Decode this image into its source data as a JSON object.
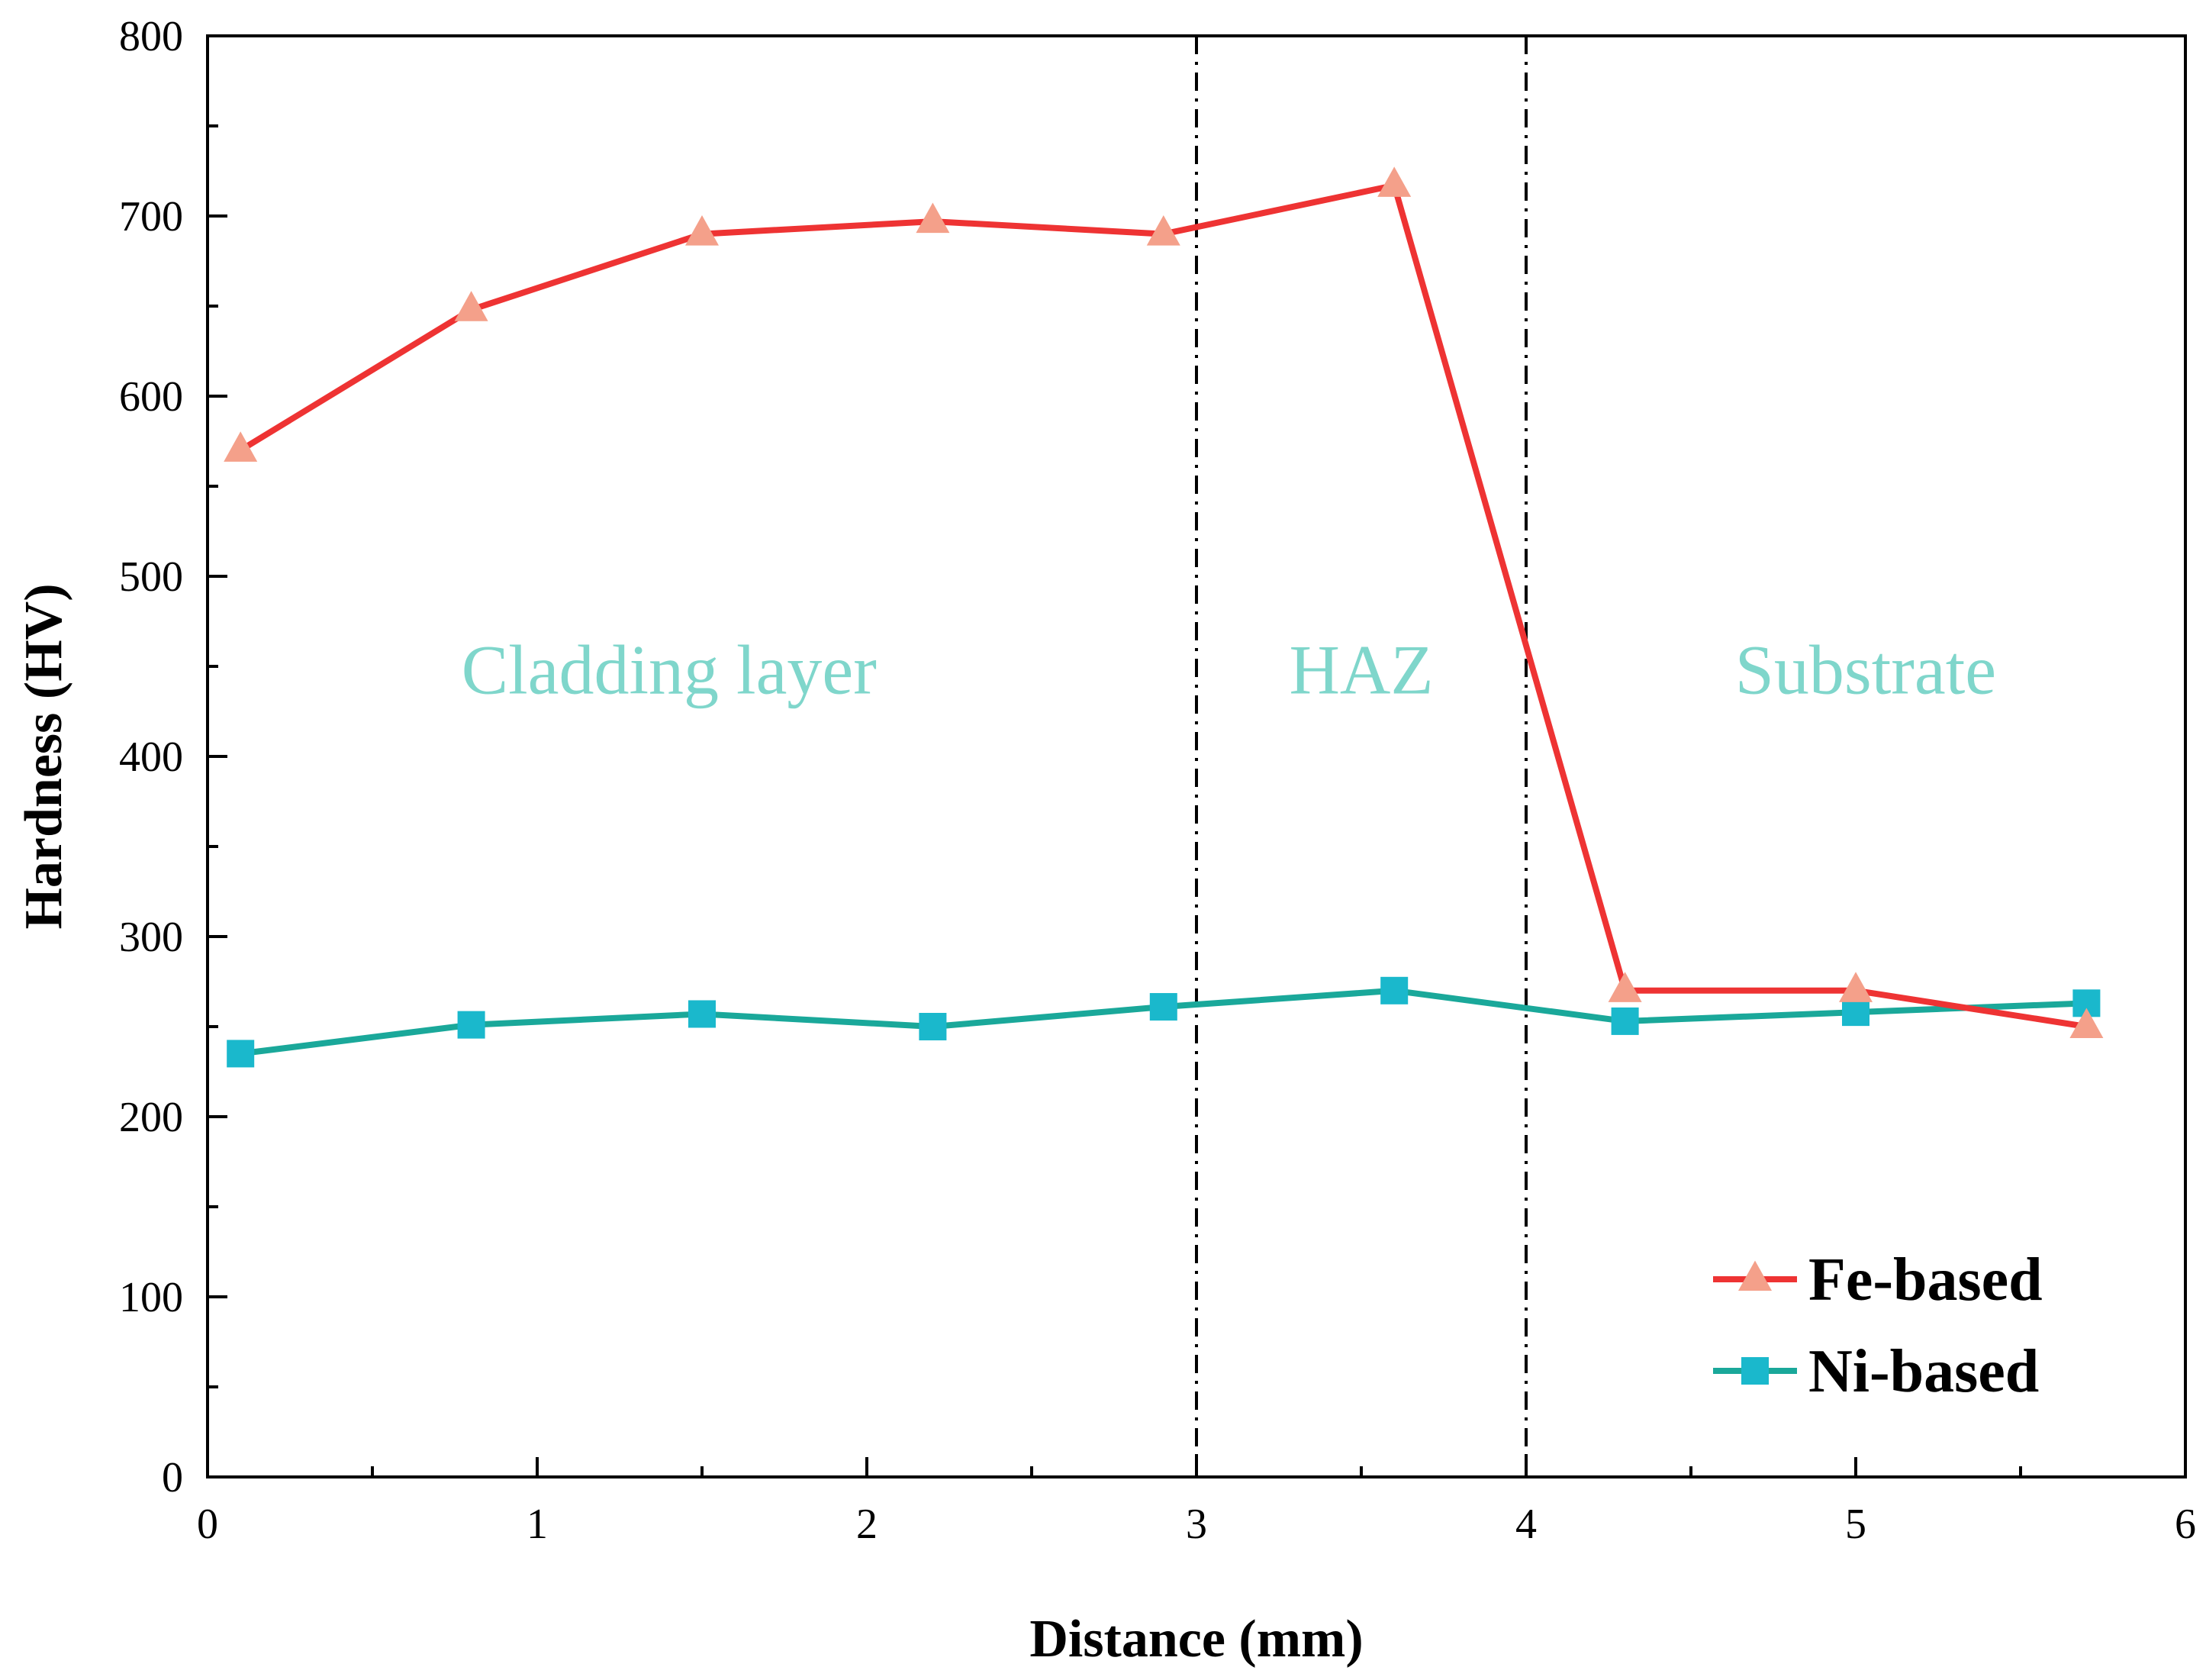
{
  "chart_data": {
    "type": "line",
    "title": "",
    "xlabel": "Distance (mm)",
    "ylabel": "Hardness (HV)",
    "xlim": [
      0,
      6
    ],
    "ylim": [
      0,
      800
    ],
    "xticks": [
      0,
      1,
      2,
      3,
      4,
      5,
      6
    ],
    "yticks": [
      0,
      100,
      200,
      300,
      400,
      500,
      600,
      700,
      800
    ],
    "grid": false,
    "legend_position": "bottom-right",
    "boundaries": [
      3,
      4
    ],
    "regions": [
      {
        "label": "Cladding layer",
        "x": 1.4,
        "y": 435
      },
      {
        "label": "HAZ",
        "x": 3.5,
        "y": 435
      },
      {
        "label": "Substrate",
        "x": 5.03,
        "y": 435
      }
    ],
    "series": [
      {
        "name": "Fe-based",
        "marker": "triangle",
        "line_color": "#ee3333",
        "marker_color": "#f4a08a",
        "x": [
          0.1,
          0.8,
          1.5,
          2.2,
          2.9,
          3.6,
          4.3,
          5.0,
          5.7
        ],
        "y": [
          570,
          648,
          690,
          697,
          690,
          717,
          270,
          270,
          250
        ]
      },
      {
        "name": "Ni-based",
        "marker": "square",
        "line_color": "#1aa89a",
        "marker_color": "#1ab8cc",
        "x": [
          0.1,
          0.8,
          1.5,
          2.2,
          2.9,
          3.6,
          4.3,
          5.0,
          5.7
        ],
        "y": [
          235,
          251,
          257,
          250,
          261,
          270,
          253,
          258,
          263
        ]
      }
    ],
    "region_label_color": "#7fd6cb"
  }
}
